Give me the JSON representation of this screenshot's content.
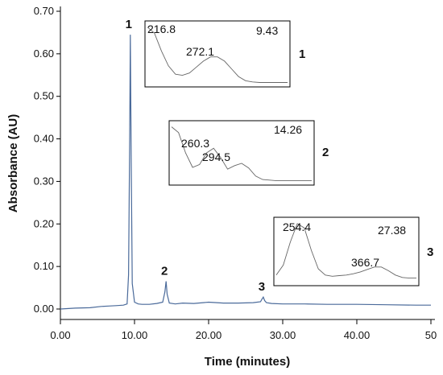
{
  "chart_data": {
    "type": "line",
    "title": "",
    "xlabel": "Time (minutes)",
    "ylabel": "Absorbance (AU)",
    "xlim": [
      0,
      50
    ],
    "ylim": [
      -0.02,
      0.72
    ],
    "x_ticks": [
      "0.00",
      "10.00",
      "20.00",
      "30.00",
      "40.00",
      "50"
    ],
    "x_tick_values": [
      0,
      10,
      20,
      30,
      40,
      50
    ],
    "y_ticks": [
      "0.00",
      "0.10",
      "0.20",
      "0.30",
      "0.40",
      "0.50",
      "0.60",
      "0.70"
    ],
    "y_tick_values": [
      0,
      0.1,
      0.2,
      0.3,
      0.4,
      0.5,
      0.6,
      0.7
    ],
    "grid": false,
    "line_color": "#4a6a9a",
    "series": [
      {
        "x": [
          0.0,
          2.0,
          4.0,
          5.5,
          6.5,
          7.5,
          8.5,
          9.0,
          9.2,
          9.35,
          9.43,
          9.55,
          9.7,
          10.0,
          10.5,
          11.0,
          12.0,
          13.0,
          13.8,
          14.1,
          14.26,
          14.4,
          14.7,
          15.5,
          16.5,
          18.0,
          20.0,
          22.0,
          24.0,
          26.0,
          27.0,
          27.2,
          27.38,
          27.55,
          27.8,
          28.5,
          30.0,
          33.0,
          36.0,
          40.0,
          44.0,
          48.0,
          50.0
        ],
        "y": [
          0.0,
          0.002,
          0.003,
          0.006,
          0.007,
          0.008,
          0.009,
          0.012,
          0.08,
          0.4,
          0.645,
          0.35,
          0.06,
          0.016,
          0.012,
          0.011,
          0.011,
          0.013,
          0.016,
          0.04,
          0.065,
          0.035,
          0.014,
          0.012,
          0.014,
          0.013,
          0.016,
          0.014,
          0.014,
          0.015,
          0.017,
          0.023,
          0.028,
          0.02,
          0.015,
          0.013,
          0.012,
          0.012,
          0.011,
          0.011,
          0.01,
          0.009,
          0.009
        ]
      }
    ],
    "peaks": [
      {
        "label": "1",
        "x": 9.43,
        "y": 0.645
      },
      {
        "label": "2",
        "x": 14.26,
        "y": 0.065
      },
      {
        "label": "3",
        "x": 27.38,
        "y": 0.028
      }
    ],
    "insets": [
      {
        "id": "1",
        "time": "9.43",
        "maxima": [
          "216.8",
          "272.1"
        ],
        "label": "1",
        "spectrum": [
          0.95,
          0.85,
          0.55,
          0.3,
          0.16,
          0.14,
          0.18,
          0.28,
          0.38,
          0.45,
          0.45,
          0.38,
          0.25,
          0.12,
          0.05,
          0.03,
          0.02,
          0.02,
          0.02,
          0.02,
          0.02
        ]
      },
      {
        "id": "2",
        "time": "14.26",
        "maxima": [
          "260.3",
          "294.5"
        ],
        "label": "2",
        "spectrum": [
          0.95,
          0.85,
          0.5,
          0.25,
          0.3,
          0.5,
          0.58,
          0.42,
          0.22,
          0.28,
          0.32,
          0.24,
          0.1,
          0.04,
          0.03,
          0.02,
          0.02,
          0.02,
          0.02,
          0.02,
          0.02
        ]
      },
      {
        "id": "3",
        "time": "27.38",
        "maxima": [
          "254.4",
          "366.7"
        ],
        "label": "3",
        "spectrum": [
          0.12,
          0.28,
          0.65,
          0.95,
          0.88,
          0.52,
          0.22,
          0.12,
          0.1,
          0.11,
          0.12,
          0.14,
          0.17,
          0.21,
          0.25,
          0.25,
          0.19,
          0.12,
          0.08,
          0.07,
          0.07
        ]
      }
    ]
  }
}
